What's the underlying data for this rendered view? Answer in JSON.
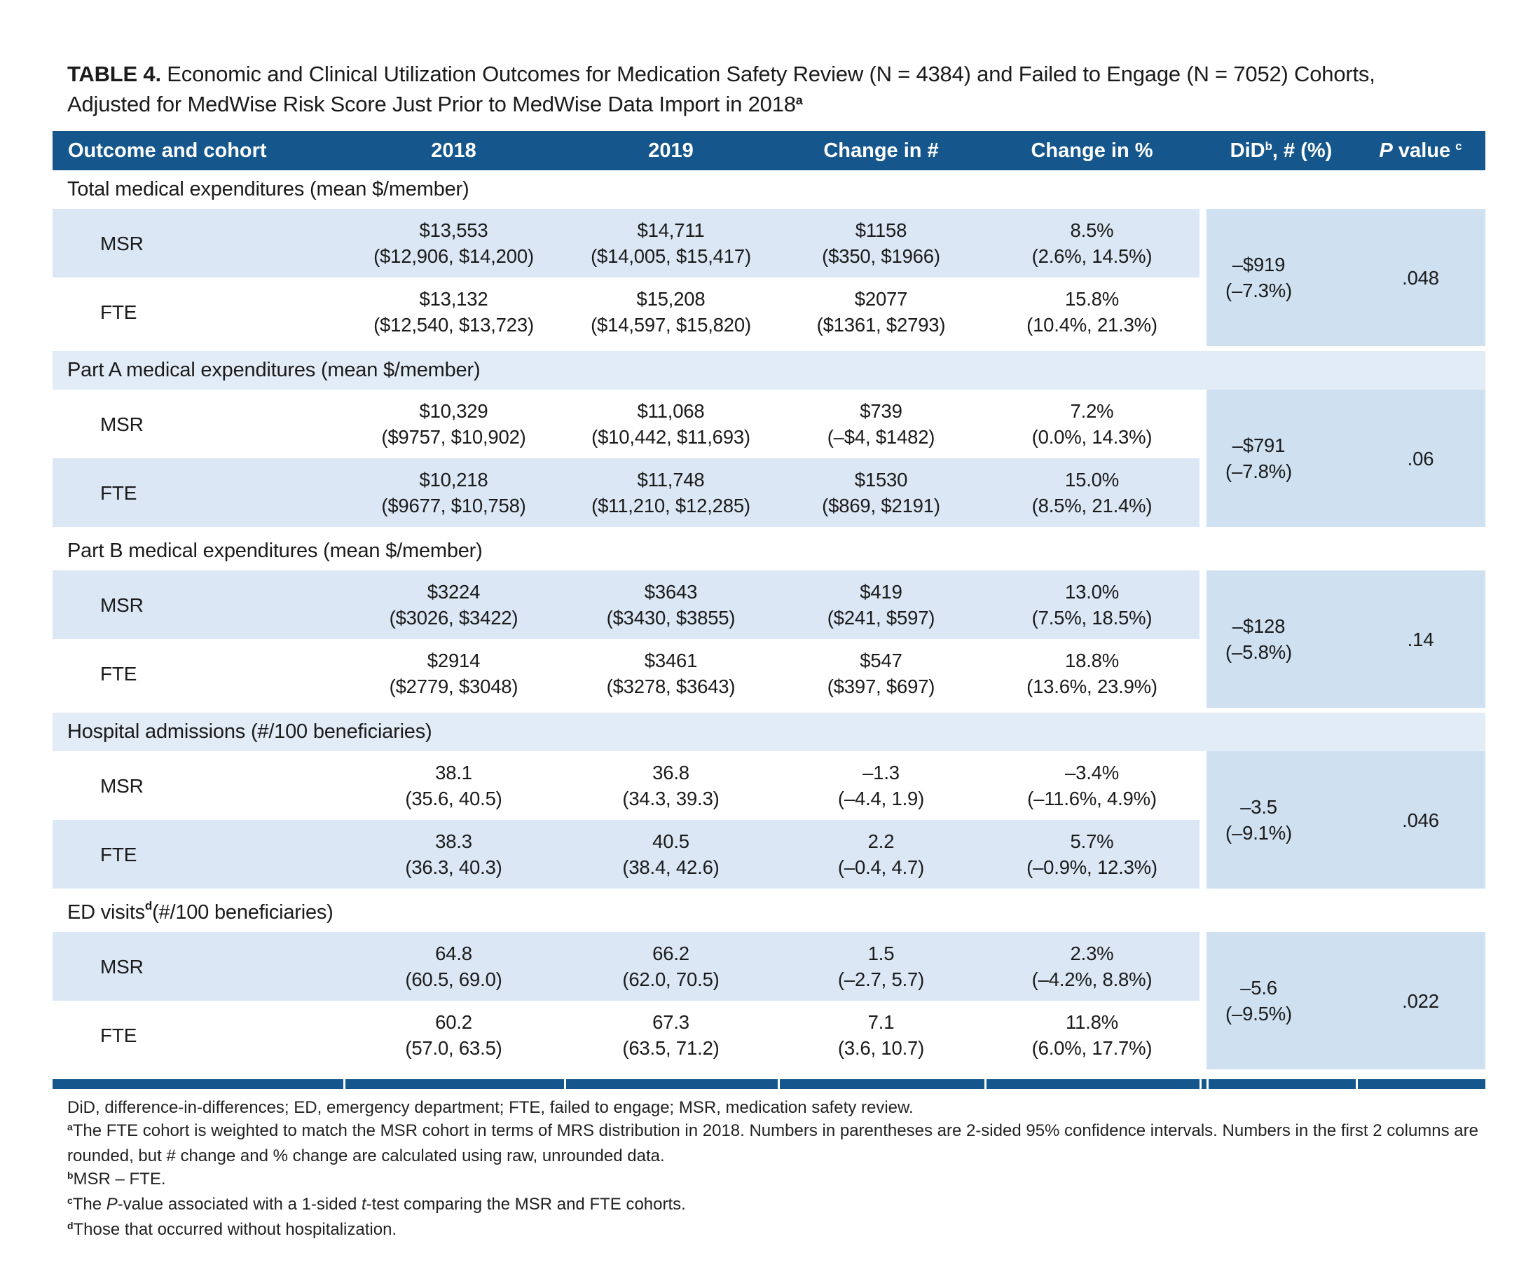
{
  "colors": {
    "header_navy": "#15578c",
    "row_blue": "#dbe7f4",
    "band_blue": "#e1ecf7",
    "did_block_blue": "#cfe0f0"
  },
  "title": {
    "label": "TABLE 4.",
    "line1": " Economic and Clinical Utilization Outcomes for Medication Safety Review (N = 4384) and Failed to Engage (N = 7052) Cohorts,",
    "line2": "Adjusted for MedWise Risk Score Just Prior to MedWise Data Import in 2018",
    "line2_sup": "a"
  },
  "header": {
    "col1": "Outcome and cohort",
    "col2": "2018",
    "col3": "2019",
    "col4": "Change in #",
    "col5": "Change in %",
    "did_pre": "DiD",
    "did_sup": "b",
    "did_post": ", # (%)",
    "p_italic": "P",
    "p_word": " value",
    "p_sup": "c"
  },
  "sections": [
    {
      "name_pre": "Total medical expenditures (mean $/member)",
      "name_sup": "",
      "name_post": "",
      "msr": {
        "label": "MSR",
        "v2018": "$13,553",
        "ci2018": "($12,906, $14,200)",
        "v2019": "$14,711",
        "ci2019": "($14,005, $15,417)",
        "vchg": "$1158",
        "cichg": "($350, $1966)",
        "vpct": "8.5%",
        "cipct": "(2.6%, 14.5%)"
      },
      "fte": {
        "label": "FTE",
        "v2018": "$13,132",
        "ci2018": "($12,540, $13,723)",
        "v2019": "$15,208",
        "ci2019": "($14,597, $15,820)",
        "vchg": "$2077",
        "cichg": "($1361, $2793)",
        "vpct": "15.8%",
        "cipct": "(10.4%, 21.3%)"
      },
      "did_v": "–$919",
      "did_ci": "(–7.3%)",
      "p": ".048"
    },
    {
      "name_pre": "Part A medical expenditures (mean $/member)",
      "name_sup": "",
      "name_post": "",
      "msr": {
        "label": "MSR",
        "v2018": "$10,329",
        "ci2018": "($9757, $10,902)",
        "v2019": "$11,068",
        "ci2019": "($10,442, $11,693)",
        "vchg": "$739",
        "cichg": "(–$4, $1482)",
        "vpct": "7.2%",
        "cipct": "(0.0%, 14.3%)"
      },
      "fte": {
        "label": "FTE",
        "v2018": "$10,218",
        "ci2018": "($9677, $10,758)",
        "v2019": "$11,748",
        "ci2019": "($11,210, $12,285)",
        "vchg": "$1530",
        "cichg": "($869, $2191)",
        "vpct": "15.0%",
        "cipct": "(8.5%, 21.4%)"
      },
      "did_v": "–$791",
      "did_ci": "(–7.8%)",
      "p": ".06"
    },
    {
      "name_pre": "Part B medical expenditures (mean $/member)",
      "name_sup": "",
      "name_post": "",
      "msr": {
        "label": "MSR",
        "v2018": "$3224",
        "ci2018": "($3026, $3422)",
        "v2019": "$3643",
        "ci2019": "($3430, $3855)",
        "vchg": "$419",
        "cichg": "($241, $597)",
        "vpct": "13.0%",
        "cipct": "(7.5%, 18.5%)"
      },
      "fte": {
        "label": "FTE",
        "v2018": "$2914",
        "ci2018": "($2779, $3048)",
        "v2019": "$3461",
        "ci2019": "($3278, $3643)",
        "vchg": "$547",
        "cichg": "($397, $697)",
        "vpct": "18.8%",
        "cipct": "(13.6%, 23.9%)"
      },
      "did_v": "–$128",
      "did_ci": "(–5.8%)",
      "p": ".14"
    },
    {
      "name_pre": "Hospital admissions (#/100 beneficiaries)",
      "name_sup": "",
      "name_post": "",
      "msr": {
        "label": "MSR",
        "v2018": "38.1",
        "ci2018": "(35.6, 40.5)",
        "v2019": "36.8",
        "ci2019": "(34.3, 39.3)",
        "vchg": "–1.3",
        "cichg": "(–4.4, 1.9)",
        "vpct": "–3.4%",
        "cipct": "(–11.6%, 4.9%)"
      },
      "fte": {
        "label": "FTE",
        "v2018": "38.3",
        "ci2018": "(36.3, 40.3)",
        "v2019": "40.5",
        "ci2019": "(38.4, 42.6)",
        "vchg": "2.2",
        "cichg": "(–0.4, 4.7)",
        "vpct": "5.7%",
        "cipct": "(–0.9%, 12.3%)"
      },
      "did_v": "–3.5",
      "did_ci": "(–9.1%)",
      "p": ".046"
    },
    {
      "name_pre": "ED visits",
      "name_sup": "d",
      "name_post": " (#/100 beneficiaries)",
      "msr": {
        "label": "MSR",
        "v2018": "64.8",
        "ci2018": "(60.5, 69.0)",
        "v2019": "66.2",
        "ci2019": "(62.0, 70.5)",
        "vchg": "1.5",
        "cichg": "(–2.7, 5.7)",
        "vpct": "2.3%",
        "cipct": "(–4.2%, 8.8%)"
      },
      "fte": {
        "label": "FTE",
        "v2018": "60.2",
        "ci2018": "(57.0, 63.5)",
        "v2019": "67.3",
        "ci2019": "(63.5, 71.2)",
        "vchg": "7.1",
        "cichg": "(3.6, 10.7)",
        "vpct": "11.8%",
        "cipct": "(6.0%, 17.7%)"
      },
      "did_v": "–5.6",
      "did_ci": "(–9.5%)",
      "p": ".022"
    }
  ],
  "footnotes": {
    "abbr": "DiD, difference-in-differences; ED, emergency department; FTE, failed to engage; MSR, medication safety review.",
    "a_sup": "a",
    "a_text": "The FTE cohort is weighted to match the MSR cohort in terms of MRS distribution in 2018. Numbers in parentheses are 2-sided 95% confidence intervals. Numbers in the first 2 columns are rounded, but # change and % change are calculated using raw, unrounded data.",
    "b_sup": "b",
    "b_text": "MSR – FTE.",
    "c_sup": "c",
    "c_pre": "The ",
    "c_it1": "P",
    "c_mid": "-value associated with a 1-sided ",
    "c_it2": "t",
    "c_post": "-test comparing the MSR and FTE cohorts.",
    "d_sup": "d",
    "d_text": "Those that occurred without hospitalization."
  }
}
